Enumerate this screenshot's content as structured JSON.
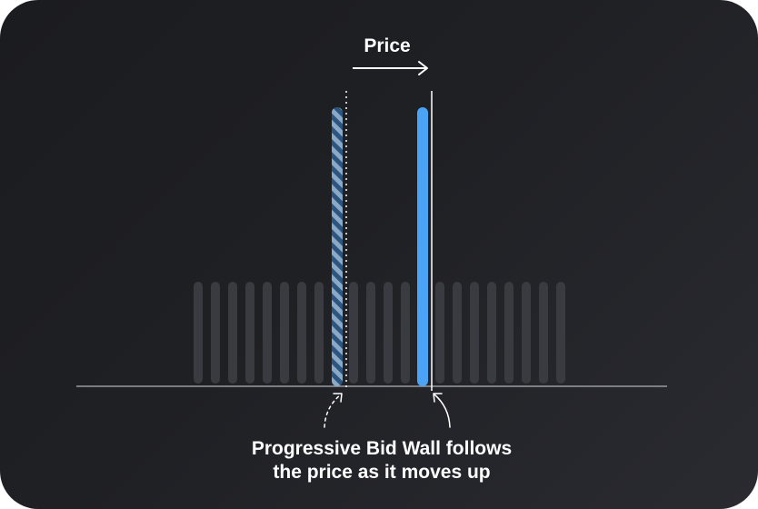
{
  "diagram": {
    "axis_label": "Price",
    "caption": {
      "line1": "Progressive Bid Wall follows",
      "line2": "the price as it moves up"
    },
    "background_bar_count": 22,
    "colors": {
      "background_bar": "#3a3b40",
      "old_wall_dark": "#2c5580",
      "old_wall_light": "#8aa9c6",
      "new_wall": "#4aa3f5",
      "axis_line": "#9a9ba0",
      "text": "#ffffff"
    }
  }
}
